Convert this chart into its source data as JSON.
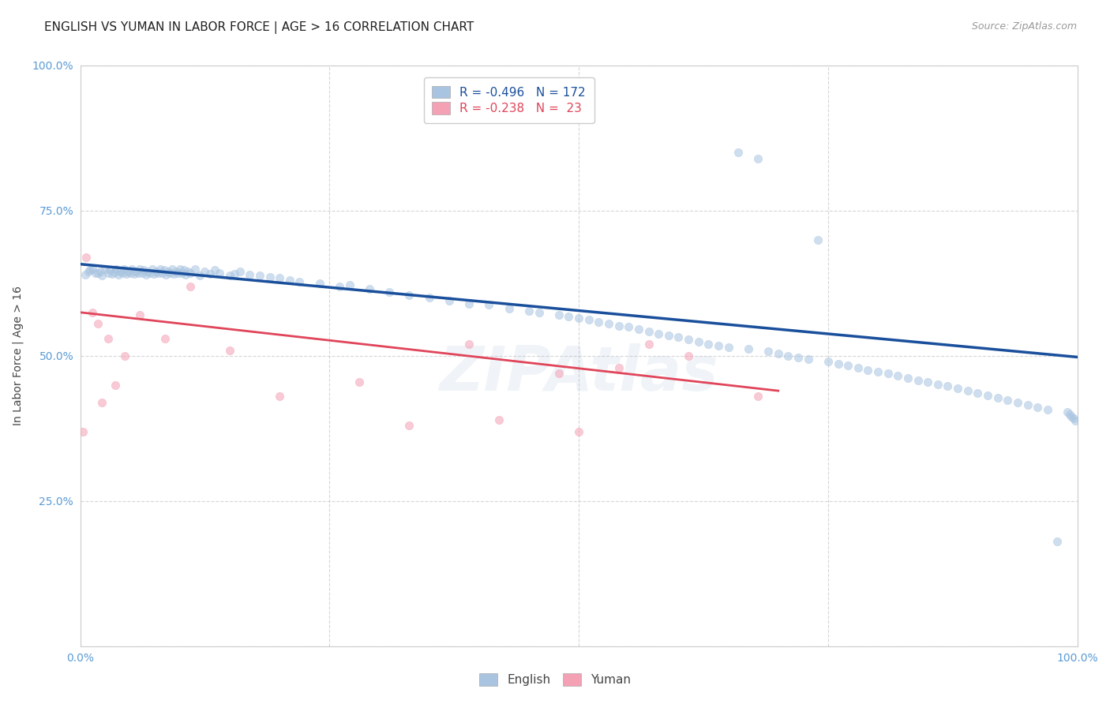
{
  "title": "ENGLISH VS YUMAN IN LABOR FORCE | AGE > 16 CORRELATION CHART",
  "source_text": "Source: ZipAtlas.com",
  "ylabel": "In Labor Force | Age > 16",
  "x_min": 0.0,
  "x_max": 1.0,
  "y_min": 0.0,
  "y_max": 1.0,
  "english_R": -0.496,
  "english_N": 172,
  "yuman_R": -0.238,
  "yuman_N": 23,
  "english_color": "#a8c4e0",
  "english_line_color": "#1a4f9c",
  "yuman_color": "#f4a0b5",
  "yuman_line_color": "#e0455a",
  "title_fontsize": 11,
  "axis_label_fontsize": 10,
  "tick_fontsize": 10,
  "legend_fontsize": 11,
  "source_fontsize": 9,
  "marker_size": 55,
  "marker_alpha": 0.55,
  "english_scatter_x": [
    0.005,
    0.008,
    0.01,
    0.012,
    0.015,
    0.018,
    0.02,
    0.022,
    0.025,
    0.028,
    0.03,
    0.032,
    0.034,
    0.036,
    0.038,
    0.04,
    0.042,
    0.044,
    0.046,
    0.048,
    0.05,
    0.052,
    0.054,
    0.056,
    0.058,
    0.06,
    0.062,
    0.064,
    0.066,
    0.068,
    0.07,
    0.072,
    0.074,
    0.076,
    0.078,
    0.08,
    0.082,
    0.084,
    0.086,
    0.088,
    0.09,
    0.092,
    0.094,
    0.096,
    0.098,
    0.1,
    0.102,
    0.104,
    0.106,
    0.108,
    0.11,
    0.115,
    0.12,
    0.125,
    0.13,
    0.135,
    0.14,
    0.15,
    0.155,
    0.16,
    0.17,
    0.18,
    0.19,
    0.2,
    0.21,
    0.22,
    0.24,
    0.26,
    0.27,
    0.29,
    0.31,
    0.33,
    0.35,
    0.37,
    0.39,
    0.41,
    0.43,
    0.45,
    0.46,
    0.48,
    0.49,
    0.5,
    0.51,
    0.52,
    0.53,
    0.54,
    0.55,
    0.56,
    0.57,
    0.58,
    0.59,
    0.6,
    0.61,
    0.62,
    0.63,
    0.64,
    0.65,
    0.66,
    0.67,
    0.68,
    0.69,
    0.7,
    0.71,
    0.72,
    0.73,
    0.74,
    0.75,
    0.76,
    0.77,
    0.78,
    0.79,
    0.8,
    0.81,
    0.82,
    0.83,
    0.84,
    0.85,
    0.86,
    0.87,
    0.88,
    0.89,
    0.9,
    0.91,
    0.92,
    0.93,
    0.94,
    0.95,
    0.96,
    0.97,
    0.98,
    0.99,
    0.992,
    0.994,
    0.996,
    0.998
  ],
  "english_scatter_y": [
    0.64,
    0.645,
    0.648,
    0.65,
    0.643,
    0.642,
    0.645,
    0.638,
    0.65,
    0.643,
    0.648,
    0.641,
    0.644,
    0.65,
    0.64,
    0.646,
    0.643,
    0.649,
    0.641,
    0.645,
    0.643,
    0.65,
    0.641,
    0.646,
    0.643,
    0.649,
    0.642,
    0.648,
    0.64,
    0.645,
    0.643,
    0.649,
    0.641,
    0.646,
    0.643,
    0.649,
    0.642,
    0.648,
    0.64,
    0.645,
    0.643,
    0.649,
    0.641,
    0.646,
    0.643,
    0.649,
    0.642,
    0.648,
    0.64,
    0.645,
    0.643,
    0.649,
    0.638,
    0.646,
    0.641,
    0.648,
    0.643,
    0.638,
    0.641,
    0.645,
    0.64,
    0.638,
    0.636,
    0.634,
    0.63,
    0.628,
    0.625,
    0.62,
    0.622,
    0.615,
    0.61,
    0.605,
    0.6,
    0.595,
    0.59,
    0.588,
    0.582,
    0.578,
    0.575,
    0.57,
    0.568,
    0.565,
    0.562,
    0.558,
    0.555,
    0.552,
    0.55,
    0.546,
    0.542,
    0.538,
    0.535,
    0.532,
    0.528,
    0.524,
    0.52,
    0.518,
    0.515,
    0.85,
    0.512,
    0.84,
    0.508,
    0.504,
    0.5,
    0.497,
    0.494,
    0.7,
    0.49,
    0.486,
    0.483,
    0.48,
    0.476,
    0.473,
    0.47,
    0.466,
    0.462,
    0.458,
    0.455,
    0.451,
    0.448,
    0.444,
    0.44,
    0.436,
    0.432,
    0.428,
    0.424,
    0.42,
    0.416,
    0.412,
    0.408,
    0.18,
    0.404,
    0.4,
    0.396,
    0.392,
    0.388
  ],
  "yuman_scatter_x": [
    0.003,
    0.006,
    0.012,
    0.018,
    0.022,
    0.028,
    0.035,
    0.045,
    0.06,
    0.085,
    0.11,
    0.15,
    0.2,
    0.28,
    0.33,
    0.39,
    0.42,
    0.48,
    0.5,
    0.54,
    0.57,
    0.61,
    0.68
  ],
  "yuman_scatter_y": [
    0.37,
    0.67,
    0.575,
    0.555,
    0.42,
    0.53,
    0.45,
    0.5,
    0.57,
    0.53,
    0.62,
    0.51,
    0.43,
    0.455,
    0.38,
    0.52,
    0.39,
    0.47,
    0.37,
    0.48,
    0.52,
    0.5,
    0.43
  ],
  "english_trendline_x": [
    0.0,
    1.0
  ],
  "english_trendline_y": [
    0.658,
    0.498
  ],
  "yuman_trendline_x": [
    0.0,
    0.7
  ],
  "yuman_trendline_y": [
    0.575,
    0.44
  ],
  "grid_color": "#cccccc",
  "background_color": "#ffffff",
  "axis_tick_color": "#5b9bd5",
  "watermark_text": "ZIPAtlas",
  "watermark_alpha": 0.12
}
